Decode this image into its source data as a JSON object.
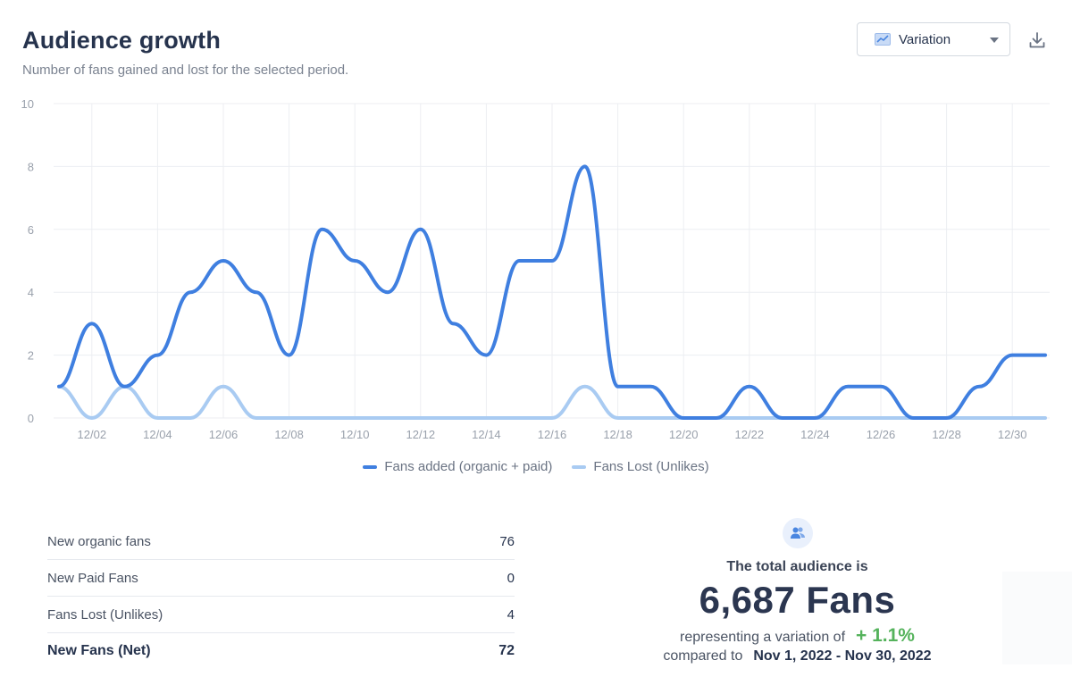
{
  "header": {
    "title": "Audience growth",
    "subtitle": "Number of fans gained and lost for the selected period."
  },
  "toolbar": {
    "view_label": "Variation",
    "view_icon": "line-chart-icon",
    "download_icon": "download-icon"
  },
  "chart_data": {
    "type": "line",
    "x": [
      "12/01",
      "12/02",
      "12/03",
      "12/04",
      "12/05",
      "12/06",
      "12/07",
      "12/08",
      "12/09",
      "12/10",
      "12/11",
      "12/12",
      "12/13",
      "12/14",
      "12/15",
      "12/16",
      "12/17",
      "12/18",
      "12/19",
      "12/20",
      "12/21",
      "12/22",
      "12/23",
      "12/24",
      "12/25",
      "12/26",
      "12/27",
      "12/28",
      "12/29",
      "12/30",
      "12/31"
    ],
    "tick_labels": [
      "12/02",
      "12/04",
      "12/06",
      "12/08",
      "12/10",
      "12/12",
      "12/14",
      "12/16",
      "12/18",
      "12/20",
      "12/22",
      "12/24",
      "12/26",
      "12/28",
      "12/30"
    ],
    "ylim": [
      0,
      10
    ],
    "yticks": [
      0,
      2,
      4,
      6,
      8,
      10
    ],
    "grid": true,
    "legend_position": "bottom",
    "series": [
      {
        "name": "Fans added (organic + paid)",
        "color": "#3f7fe0",
        "values": [
          1,
          3,
          1,
          2,
          4,
          5,
          4,
          2,
          6,
          5,
          4,
          6,
          3,
          2,
          5,
          5,
          8,
          1,
          1,
          0,
          0,
          1,
          0,
          0,
          1,
          1,
          0,
          0,
          1,
          2,
          2
        ]
      },
      {
        "name": "Fans Lost (Unlikes)",
        "color": "#a9cbf2",
        "values": [
          1,
          0,
          1,
          0,
          0,
          1,
          0,
          0,
          0,
          0,
          0,
          0,
          0,
          0,
          0,
          0,
          1,
          0,
          0,
          0,
          0,
          0,
          0,
          0,
          0,
          0,
          0,
          0,
          0,
          0,
          0
        ]
      }
    ]
  },
  "stats": {
    "rows": [
      {
        "label": "New organic fans",
        "value": "76"
      },
      {
        "label": "New Paid Fans",
        "value": "0"
      },
      {
        "label": "Fans Lost (Unlikes)",
        "value": "4"
      },
      {
        "label": "New Fans (Net)",
        "value": "72"
      }
    ]
  },
  "summary": {
    "icon": "users-icon",
    "label": "The total audience is",
    "value": "6,687 Fans",
    "variation_text": "representing a variation of",
    "variation_value": "+ 1.1%",
    "variation_color": "#55b35c",
    "compare_text": "compared to",
    "period": "Nov 1, 2022 - Nov 30, 2022"
  }
}
